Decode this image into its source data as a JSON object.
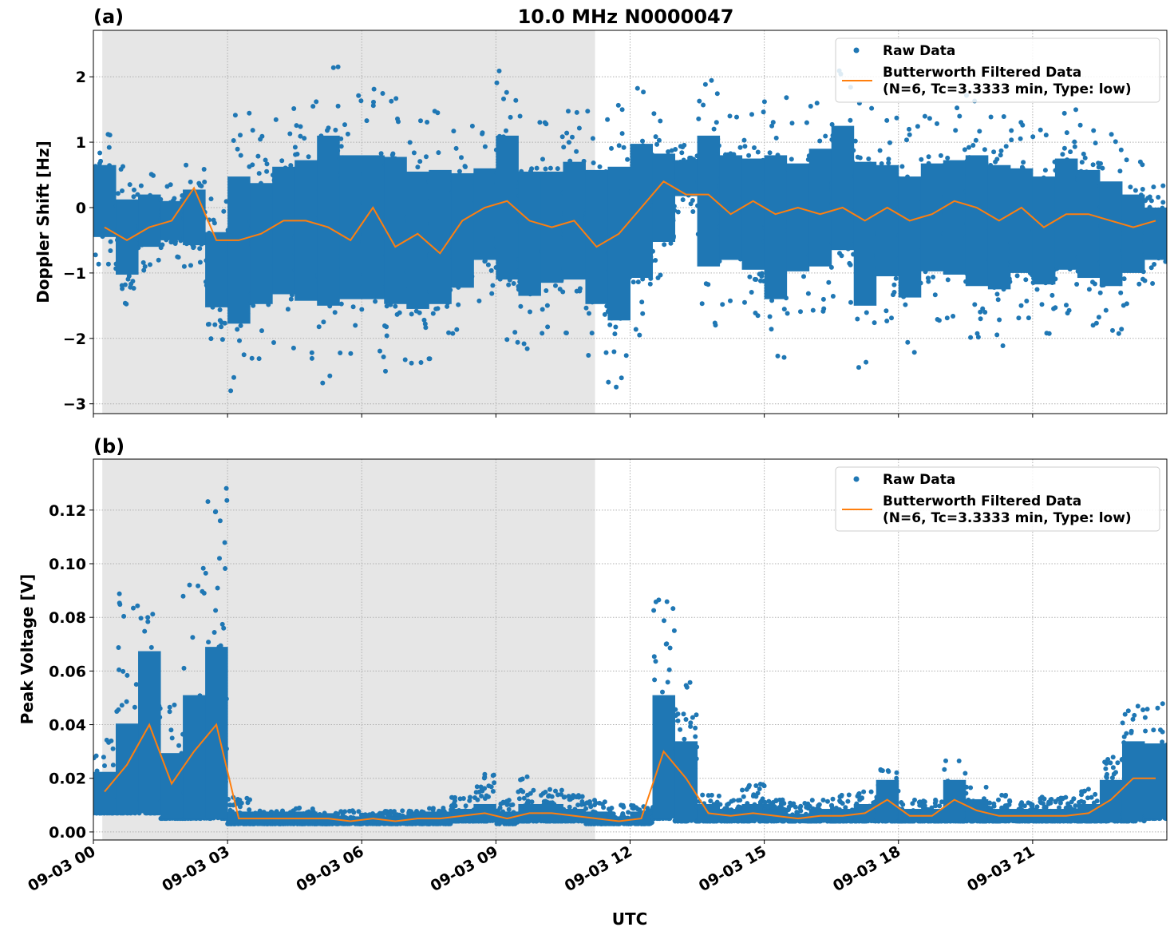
{
  "chart_data": {
    "title": "10.0 MHz N0000047",
    "type": "scatter",
    "xlabel": "UTC",
    "date": "09-03",
    "x_ticks": [
      "09-03 00",
      "09-03 03",
      "09-03 06",
      "09-03 09",
      "09-03 12",
      "09-03 15",
      "09-03 18",
      "09-03 21"
    ],
    "xlim": [
      "09-03 00:00",
      "09-04 00:00"
    ],
    "shaded_interval": [
      "09-03 00:12",
      "09-03 11:13"
    ],
    "shade_color": "#e6e6e6",
    "grid": true,
    "legend_placement": "top-right",
    "bin_start_times": [
      "00:00",
      "00:30",
      "01:00",
      "01:30",
      "02:00",
      "02:30",
      "03:00",
      "03:30",
      "04:00",
      "04:30",
      "05:00",
      "05:30",
      "06:00",
      "06:30",
      "07:00",
      "07:30",
      "08:00",
      "08:30",
      "09:00",
      "09:30",
      "10:00",
      "10:30",
      "11:00",
      "11:30",
      "12:00",
      "12:30",
      "13:00",
      "13:30",
      "14:00",
      "14:30",
      "15:00",
      "15:30",
      "16:00",
      "16:30",
      "17:00",
      "17:30",
      "18:00",
      "18:30",
      "19:00",
      "19:30",
      "20:00",
      "20:30",
      "21:00",
      "21:30",
      "22:00",
      "22:30",
      "23:00",
      "23:30"
    ],
    "panels": [
      {
        "label": "(a)",
        "ylabel": "Doppler Shift [Hz]",
        "ylim": [
          -3.15,
          2.71
        ],
        "y_ticks": [
          2,
          1,
          0,
          -1,
          -2,
          -3
        ],
        "y_tick_labels": [
          "2",
          "1",
          "0",
          "−1",
          "−2",
          "−3"
        ],
        "legend": [
          "Raw Data",
          "Butterworth Filtered Data",
          "(N=6, Tc=3.3333 min, Type: low)"
        ],
        "series": [
          {
            "name": "Raw Data",
            "color": "#1f77b4",
            "kind": "scatter",
            "low": [
              -1.0,
              -1.6,
              -1.0,
              -0.8,
              -1.0,
              -2.1,
              -2.9,
              -2.4,
              -2.3,
              -2.5,
              -2.8,
              -2.5,
              -2.5,
              -2.6,
              -2.6,
              -2.5,
              -2.1,
              -1.5,
              -2.2,
              -2.3,
              -2.0,
              -2.0,
              -2.5,
              -2.9,
              -2.1,
              -1.2,
              -0.1,
              -1.9,
              -1.6,
              -1.8,
              -2.5,
              -1.8,
              -1.8,
              -1.6,
              -2.6,
              -1.9,
              -2.3,
              -1.8,
              -1.9,
              -2.2,
              -2.2,
              -1.8,
              -2.0,
              -1.8,
              -1.9,
              -2.0,
              -1.6,
              -1.2
            ],
            "high": [
              1.2,
              0.7,
              0.6,
              0.4,
              0.7,
              0.2,
              1.6,
              1.3,
              1.6,
              1.8,
              2.4,
              1.9,
              1.9,
              1.9,
              1.6,
              1.6,
              1.4,
              1.3,
              2.2,
              1.5,
              1.4,
              1.6,
              1.6,
              1.8,
              2.0,
              1.5,
              1.0,
              2.1,
              1.6,
              1.6,
              1.9,
              1.5,
              1.8,
              2.2,
              1.8,
              1.5,
              1.4,
              1.5,
              1.6,
              1.8,
              1.6,
              1.4,
              1.3,
              1.6,
              1.4,
              1.2,
              0.8,
              0.4
            ]
          },
          {
            "name": "Butterworth Filtered Data",
            "color": "#ff7f0e",
            "kind": "line",
            "values": [
              -0.3,
              -0.5,
              -0.3,
              -0.2,
              0.3,
              -0.5,
              -0.5,
              -0.4,
              -0.2,
              -0.2,
              -0.3,
              -0.5,
              0.0,
              -0.6,
              -0.4,
              -0.7,
              -0.2,
              0.0,
              0.1,
              -0.2,
              -0.3,
              -0.2,
              -0.6,
              -0.4,
              0.0,
              0.4,
              0.2,
              0.2,
              -0.1,
              0.1,
              -0.1,
              0.0,
              -0.1,
              0.0,
              -0.2,
              0.0,
              -0.2,
              -0.1,
              0.1,
              0.0,
              -0.2,
              0.0,
              -0.3,
              -0.1,
              -0.1,
              -0.2,
              -0.3,
              -0.2
            ]
          }
        ]
      },
      {
        "label": "(b)",
        "ylabel": "Peak Voltage [V]",
        "ylim": [
          -0.003,
          0.139
        ],
        "y_ticks": [
          0.12,
          0.1,
          0.08,
          0.06,
          0.04,
          0.02,
          0.0
        ],
        "y_tick_labels": [
          "0.12",
          "0.10",
          "0.08",
          "0.06",
          "0.04",
          "0.02",
          "0.00"
        ],
        "legend": [
          "Raw Data",
          "Butterworth Filtered Data",
          "(N=6, Tc=3.3333 min, Type: low)"
        ],
        "series": [
          {
            "name": "Raw Data",
            "color": "#1f77b4",
            "kind": "scatter",
            "low": [
              0.007,
              0.007,
              0.007,
              0.005,
              0.005,
              0.005,
              0.003,
              0.003,
              0.003,
              0.003,
              0.003,
              0.003,
              0.003,
              0.003,
              0.003,
              0.003,
              0.004,
              0.004,
              0.003,
              0.004,
              0.004,
              0.004,
              0.003,
              0.003,
              0.003,
              0.005,
              0.004,
              0.004,
              0.004,
              0.004,
              0.004,
              0.004,
              0.004,
              0.004,
              0.004,
              0.004,
              0.004,
              0.004,
              0.004,
              0.004,
              0.004,
              0.004,
              0.004,
              0.004,
              0.004,
              0.004,
              0.004,
              0.005
            ],
            "high": [
              0.035,
              0.089,
              0.085,
              0.048,
              0.099,
              0.132,
              0.013,
              0.008,
              0.008,
              0.009,
              0.007,
              0.008,
              0.007,
              0.008,
              0.008,
              0.009,
              0.013,
              0.022,
              0.012,
              0.021,
              0.016,
              0.014,
              0.012,
              0.01,
              0.01,
              0.087,
              0.057,
              0.014,
              0.012,
              0.018,
              0.012,
              0.011,
              0.012,
              0.014,
              0.015,
              0.024,
              0.012,
              0.012,
              0.027,
              0.017,
              0.014,
              0.011,
              0.013,
              0.013,
              0.016,
              0.028,
              0.049,
              0.048
            ]
          },
          {
            "name": "Butterworth Filtered Data",
            "color": "#ff7f0e",
            "kind": "line",
            "values": [
              0.015,
              0.025,
              0.04,
              0.018,
              0.03,
              0.04,
              0.005,
              0.005,
              0.005,
              0.005,
              0.005,
              0.004,
              0.005,
              0.004,
              0.005,
              0.005,
              0.006,
              0.007,
              0.005,
              0.007,
              0.007,
              0.006,
              0.005,
              0.004,
              0.005,
              0.03,
              0.02,
              0.007,
              0.006,
              0.007,
              0.006,
              0.005,
              0.006,
              0.006,
              0.007,
              0.012,
              0.006,
              0.006,
              0.012,
              0.008,
              0.006,
              0.006,
              0.006,
              0.006,
              0.007,
              0.012,
              0.02,
              0.02
            ]
          }
        ]
      }
    ]
  }
}
